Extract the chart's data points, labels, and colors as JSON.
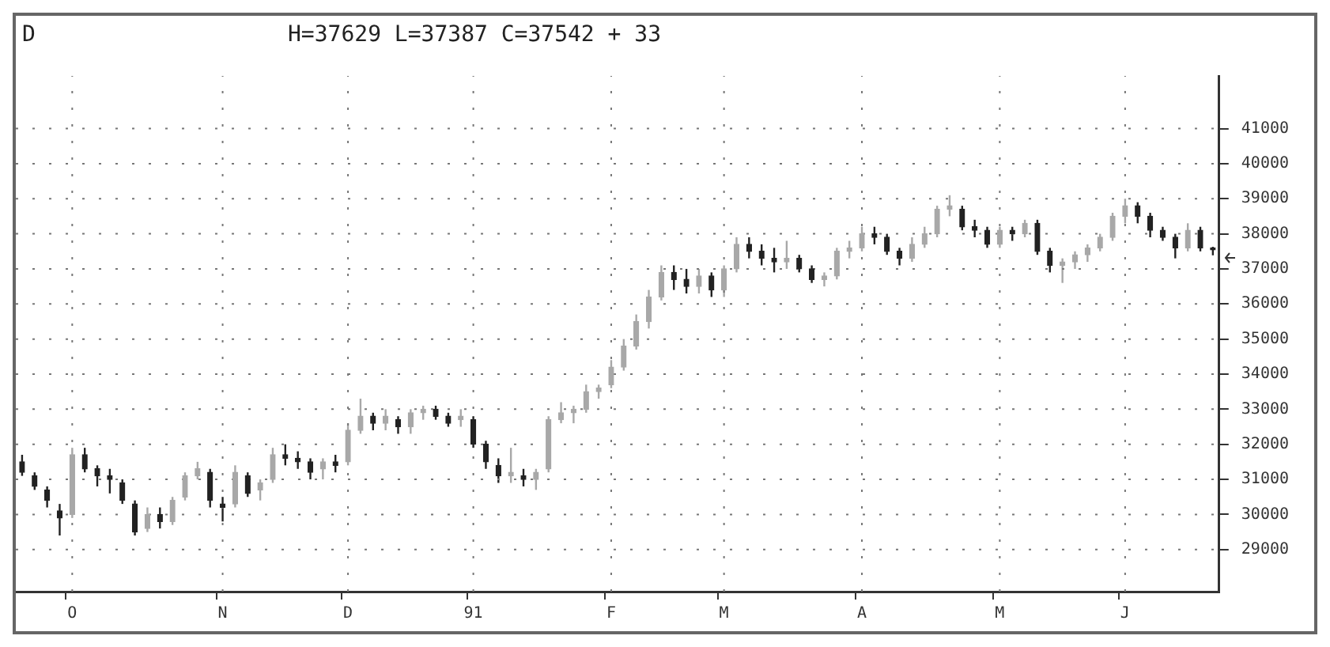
{
  "chart_data": {
    "type": "candlestick",
    "title": "D",
    "subtitle": "H=37629 L=37387 C=37542 + 33",
    "categories": [
      null,
      null,
      null,
      null,
      "O",
      null,
      null,
      null,
      null,
      null,
      null,
      null,
      null,
      null,
      null,
      null,
      "N",
      null,
      null,
      null,
      null,
      null,
      null,
      null,
      null,
      null,
      "D",
      null,
      null,
      null,
      null,
      null,
      null,
      null,
      null,
      null,
      "91",
      null,
      null,
      null,
      null,
      null,
      null,
      null,
      null,
      null,
      null,
      "F",
      null,
      null,
      null,
      null,
      null,
      null,
      null,
      null,
      "M",
      null,
      null,
      null,
      null,
      null,
      null,
      null,
      null,
      null,
      null,
      "A",
      null,
      null,
      null,
      null,
      null,
      null,
      null,
      null,
      null,
      null,
      "M",
      null,
      null,
      null,
      null,
      null,
      null,
      null,
      null,
      null,
      "J",
      null,
      null,
      null,
      null,
      null,
      null,
      null
    ],
    "ohlc": [
      [
        31500,
        31700,
        31100,
        31200
      ],
      [
        31100,
        31200,
        30700,
        30800
      ],
      [
        30700,
        30800,
        30200,
        30400
      ],
      [
        30100,
        30300,
        29400,
        29900
      ],
      [
        30000,
        31900,
        29900,
        31700
      ],
      [
        31700,
        31900,
        31200,
        31300
      ],
      [
        31300,
        31400,
        30800,
        31100
      ],
      [
        31100,
        31300,
        30600,
        31000
      ],
      [
        30900,
        31000,
        30300,
        30400
      ],
      [
        30300,
        30400,
        29400,
        29500
      ],
      [
        29600,
        30200,
        29500,
        30000
      ],
      [
        30000,
        30200,
        29600,
        29800
      ],
      [
        29800,
        30500,
        29700,
        30400
      ],
      [
        30500,
        31200,
        30400,
        31100
      ],
      [
        31100,
        31500,
        31000,
        31300
      ],
      [
        31200,
        31300,
        30200,
        30400
      ],
      [
        30300,
        30500,
        29800,
        30200
      ],
      [
        30300,
        31400,
        30200,
        31200
      ],
      [
        31100,
        31200,
        30500,
        30600
      ],
      [
        30700,
        31000,
        30400,
        30900
      ],
      [
        31000,
        31900,
        30900,
        31700
      ],
      [
        31700,
        32000,
        31400,
        31600
      ],
      [
        31600,
        31800,
        31300,
        31500
      ],
      [
        31500,
        31600,
        31000,
        31200
      ],
      [
        31300,
        31600,
        31000,
        31500
      ],
      [
        31500,
        31700,
        31200,
        31400
      ],
      [
        31500,
        32600,
        31400,
        32400
      ],
      [
        32400,
        33300,
        32300,
        32800
      ],
      [
        32800,
        32900,
        32400,
        32600
      ],
      [
        32600,
        33000,
        32400,
        32800
      ],
      [
        32700,
        32800,
        32300,
        32500
      ],
      [
        32500,
        33000,
        32300,
        32900
      ],
      [
        32900,
        33100,
        32700,
        33000
      ],
      [
        33000,
        33100,
        32700,
        32800
      ],
      [
        32800,
        32900,
        32500,
        32600
      ],
      [
        32700,
        33000,
        32500,
        32800
      ],
      [
        32700,
        32800,
        31900,
        32000
      ],
      [
        32000,
        32100,
        31300,
        31500
      ],
      [
        31400,
        31600,
        30900,
        31100
      ],
      [
        31100,
        31900,
        30900,
        31200
      ],
      [
        31100,
        31300,
        30800,
        31000
      ],
      [
        31000,
        31300,
        30700,
        31200
      ],
      [
        31300,
        32800,
        31200,
        32700
      ],
      [
        32700,
        33200,
        32600,
        32900
      ],
      [
        32900,
        33100,
        32600,
        33000
      ],
      [
        33000,
        33700,
        32900,
        33500
      ],
      [
        33500,
        33700,
        33300,
        33600
      ],
      [
        33700,
        34400,
        33600,
        34200
      ],
      [
        34200,
        35000,
        34100,
        34800
      ],
      [
        34800,
        35700,
        34700,
        35500
      ],
      [
        35500,
        36400,
        35300,
        36200
      ],
      [
        36200,
        37100,
        36100,
        36900
      ],
      [
        36900,
        37100,
        36400,
        36700
      ],
      [
        36700,
        37000,
        36300,
        36500
      ],
      [
        36500,
        37000,
        36300,
        36800
      ],
      [
        36800,
        36900,
        36200,
        36400
      ],
      [
        36400,
        37100,
        36200,
        37000
      ],
      [
        37000,
        37900,
        36900,
        37700
      ],
      [
        37700,
        37900,
        37300,
        37500
      ],
      [
        37500,
        37700,
        37100,
        37300
      ],
      [
        37300,
        37600,
        36900,
        37200
      ],
      [
        37200,
        37800,
        37000,
        37300
      ],
      [
        37300,
        37400,
        36900,
        37000
      ],
      [
        37000,
        37100,
        36600,
        36700
      ],
      [
        36700,
        36900,
        36500,
        36800
      ],
      [
        36800,
        37600,
        36700,
        37500
      ],
      [
        37500,
        37800,
        37300,
        37600
      ],
      [
        37600,
        38200,
        37500,
        38000
      ],
      [
        38000,
        38200,
        37700,
        37900
      ],
      [
        37900,
        38000,
        37400,
        37500
      ],
      [
        37500,
        37600,
        37100,
        37300
      ],
      [
        37300,
        37900,
        37200,
        37700
      ],
      [
        37700,
        38200,
        37600,
        38000
      ],
      [
        38000,
        38800,
        37900,
        38700
      ],
      [
        38700,
        39100,
        38500,
        38800
      ],
      [
        38700,
        38800,
        38100,
        38200
      ],
      [
        38200,
        38400,
        37900,
        38100
      ],
      [
        38100,
        38200,
        37600,
        37700
      ],
      [
        37700,
        38200,
        37600,
        38100
      ],
      [
        38100,
        38200,
        37800,
        38000
      ],
      [
        38000,
        38400,
        37900,
        38300
      ],
      [
        38300,
        38400,
        37400,
        37500
      ],
      [
        37500,
        37600,
        36900,
        37100
      ],
      [
        37100,
        37300,
        36600,
        37200
      ],
      [
        37200,
        37500,
        37000,
        37400
      ],
      [
        37400,
        37700,
        37200,
        37600
      ],
      [
        37600,
        38000,
        37500,
        37900
      ],
      [
        37900,
        38600,
        37800,
        38500
      ],
      [
        38500,
        39000,
        38300,
        38800
      ],
      [
        38800,
        38900,
        38300,
        38500
      ],
      [
        38500,
        38600,
        37900,
        38100
      ],
      [
        38100,
        38200,
        37800,
        37900
      ],
      [
        37900,
        38000,
        37300,
        37600
      ],
      [
        37600,
        38300,
        37500,
        38100
      ],
      [
        38100,
        38200,
        37500,
        37600
      ],
      [
        37600,
        37629,
        37387,
        37542
      ]
    ],
    "colors": [
      "#222222",
      "#222222",
      "#222222",
      "#222222",
      "#a8a8a8",
      "#222222",
      "#222222",
      "#222222",
      "#222222",
      "#222222",
      "#a8a8a8",
      "#222222",
      "#a8a8a8",
      "#a8a8a8",
      "#a8a8a8",
      "#222222",
      "#222222",
      "#a8a8a8",
      "#222222",
      "#a8a8a8",
      "#a8a8a8",
      "#222222",
      "#222222",
      "#222222",
      "#a8a8a8",
      "#222222",
      "#a8a8a8",
      "#a8a8a8",
      "#222222",
      "#a8a8a8",
      "#222222",
      "#a8a8a8",
      "#a8a8a8",
      "#222222",
      "#222222",
      "#a8a8a8",
      "#222222",
      "#222222",
      "#222222",
      "#a8a8a8",
      "#222222",
      "#a8a8a8",
      "#a8a8a8",
      "#a8a8a8",
      "#a8a8a8",
      "#a8a8a8",
      "#a8a8a8",
      "#a8a8a8",
      "#a8a8a8",
      "#a8a8a8",
      "#a8a8a8",
      "#a8a8a8",
      "#222222",
      "#222222",
      "#a8a8a8",
      "#222222",
      "#a8a8a8",
      "#a8a8a8",
      "#222222",
      "#222222",
      "#222222",
      "#a8a8a8",
      "#222222",
      "#222222",
      "#a8a8a8",
      "#a8a8a8",
      "#a8a8a8",
      "#a8a8a8",
      "#222222",
      "#222222",
      "#222222",
      "#a8a8a8",
      "#a8a8a8",
      "#a8a8a8",
      "#a8a8a8",
      "#222222",
      "#222222",
      "#222222",
      "#a8a8a8",
      "#222222",
      "#a8a8a8",
      "#222222",
      "#222222",
      "#a8a8a8",
      "#a8a8a8",
      "#a8a8a8",
      "#a8a8a8",
      "#a8a8a8",
      "#a8a8a8",
      "#222222",
      "#222222",
      "#222222",
      "#222222",
      "#a8a8a8",
      "#222222",
      "#222222"
    ],
    "ylim": [
      27800,
      42500
    ],
    "yticks": [
      29000,
      30000,
      31000,
      32000,
      33000,
      34000,
      35000,
      36000,
      37000,
      38000,
      39000,
      40000,
      41000
    ],
    "grid": true,
    "legend": false
  }
}
